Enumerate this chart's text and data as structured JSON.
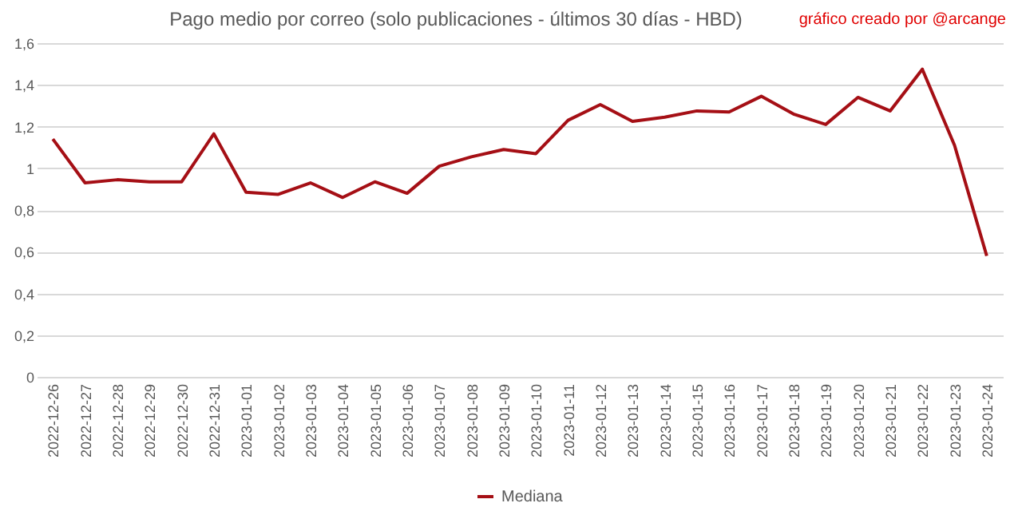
{
  "chart_data": {
    "type": "line",
    "title": "Pago medio por correo (solo publicaciones - últimos 30 días - HBD)",
    "annotations": [
      "gráfico creado por @arcange"
    ],
    "categories": [
      "2022-12-26",
      "2022-12-27",
      "2022-12-28",
      "2022-12-29",
      "2022-12-30",
      "2022-12-31",
      "2023-01-01",
      "2023-01-02",
      "2023-01-03",
      "2023-01-04",
      "2023-01-05",
      "2023-01-06",
      "2023-01-07",
      "2023-01-08",
      "2023-01-09",
      "2023-01-10",
      "2023-01-11",
      "2023-01-12",
      "2023-01-13",
      "2023-01-14",
      "2023-01-15",
      "2023-01-16",
      "2023-01-17",
      "2023-01-18",
      "2023-01-19",
      "2023-01-20",
      "2023-01-21",
      "2023-01-22",
      "2023-01-23",
      "2023-01-24"
    ],
    "series": [
      {
        "name": "Mediana",
        "color": "#a50f15",
        "values": [
          1.14,
          0.93,
          0.945,
          0.935,
          0.935,
          1.165,
          0.885,
          0.875,
          0.93,
          0.86,
          0.935,
          0.88,
          1.01,
          1.055,
          1.09,
          1.07,
          1.23,
          1.305,
          1.225,
          1.245,
          1.275,
          1.27,
          1.345,
          1.26,
          1.21,
          1.34,
          1.275,
          1.475,
          1.11,
          0.58
        ]
      }
    ],
    "ylim": [
      0,
      1.6
    ],
    "yticks": [
      0,
      {
        "value": 0.2,
        "label": "0,2"
      },
      {
        "value": 0.4,
        "label": "0,4"
      },
      {
        "value": 0.6,
        "label": "0,6"
      },
      {
        "value": 0.8,
        "label": "0,8"
      },
      1,
      {
        "value": 1.2,
        "label": "1,2"
      },
      {
        "value": 1.4,
        "label": "1,4"
      },
      {
        "value": 1.6,
        "label": "1,6"
      }
    ],
    "grid": "y",
    "legend": "bottom",
    "marker": "none",
    "line_style": "solid"
  }
}
